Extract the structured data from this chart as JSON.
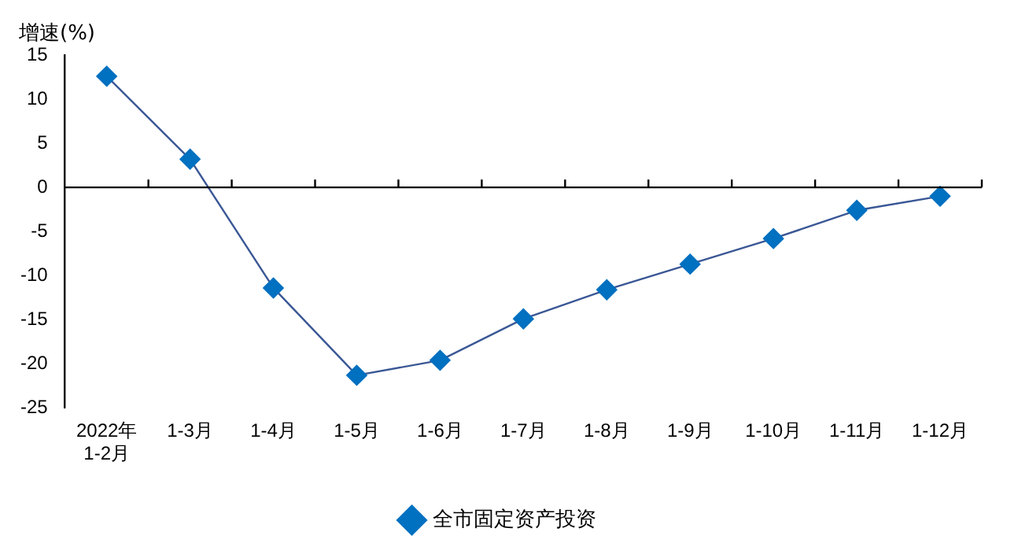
{
  "chart_data": {
    "type": "line",
    "ylabel": "增速(%)",
    "categories": [
      "2022年\n1-2月",
      "1-3月",
      "1-4月",
      "1-5月",
      "1-6月",
      "1-7月",
      "1-8月",
      "1-9月",
      "1-10月",
      "1-11月",
      "1-12月"
    ],
    "series": [
      {
        "name": "全市固定资产投资",
        "color": "#0070c0",
        "values": [
          12.6,
          3.2,
          -11.4,
          -21.3,
          -19.6,
          -14.9,
          -11.6,
          -8.7,
          -5.8,
          -2.6,
          -1.0
        ]
      }
    ],
    "ylim": [
      -25,
      15
    ],
    "yticks": [
      -25,
      -20,
      -15,
      -10,
      -5,
      0,
      5,
      10,
      15
    ],
    "grid": false,
    "ref_lines": [
      {
        "axis": "y",
        "value": 0,
        "color": "#000000"
      }
    ],
    "legend": "bottom",
    "marker": "diamond",
    "line_style": "solid"
  }
}
